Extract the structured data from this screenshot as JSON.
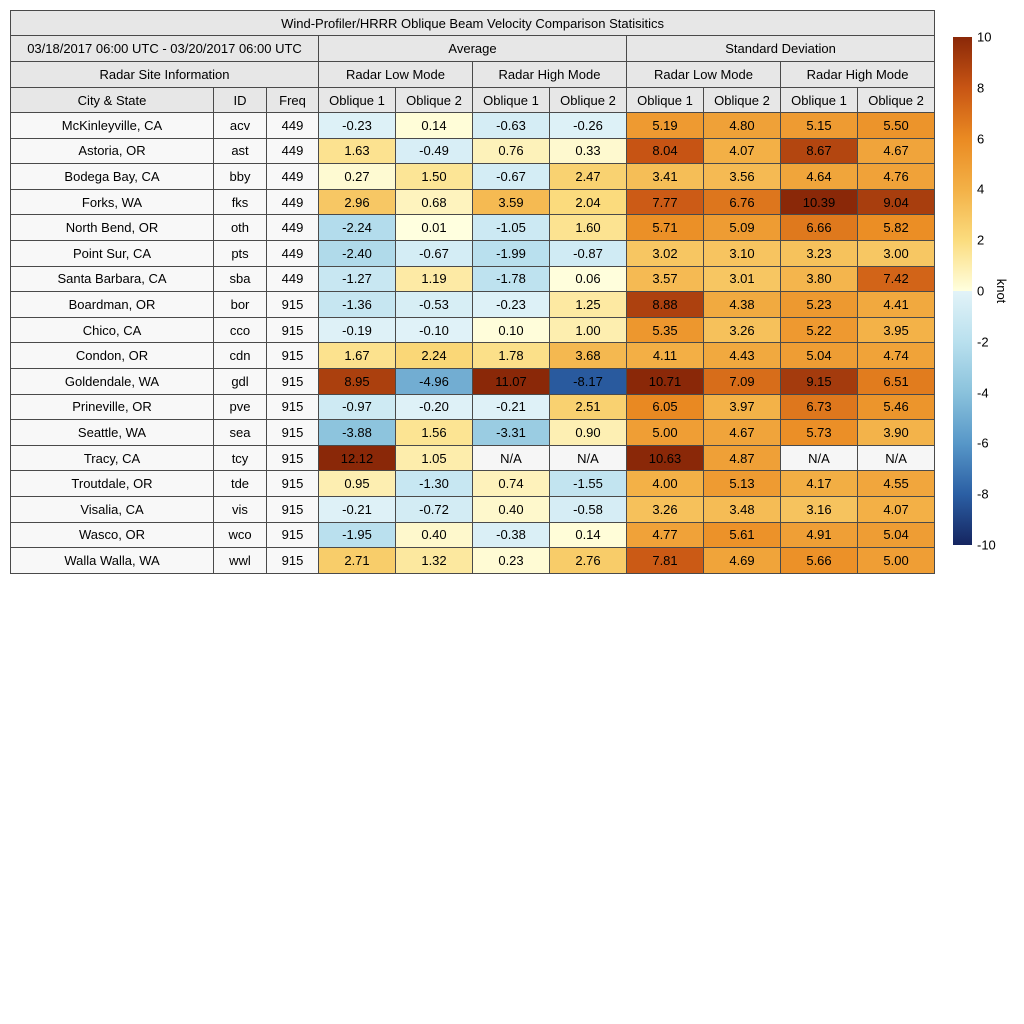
{
  "title": "Wind-Profiler/HRRR Oblique Beam Velocity Comparison Statisitics",
  "header": {
    "date_range": "03/18/2017 06:00 UTC - 03/20/2017 06:00 UTC",
    "group_average": "Average",
    "group_std": "Standard Deviation",
    "site_info": "Radar Site Information",
    "mode_labels": [
      "Radar Low Mode",
      "Radar High Mode",
      "Radar Low Mode",
      "Radar High Mode"
    ],
    "col_city": "City & State",
    "col_id": "ID",
    "col_freq": "Freq",
    "oblique_labels": [
      "Oblique 1",
      "Oblique 2",
      "Oblique 1",
      "Oblique 2",
      "Oblique 1",
      "Oblique 2",
      "Oblique 1",
      "Oblique 2"
    ]
  },
  "colormap": {
    "na_bg": "#f6f6f6",
    "stops": [
      [
        -10,
        "#152560"
      ],
      [
        -8,
        "#2b5fa4"
      ],
      [
        -6,
        "#5797c8"
      ],
      [
        -4,
        "#8ac2dc"
      ],
      [
        -2,
        "#b9e0ee"
      ],
      [
        -0.001,
        "#e2f3f8"
      ],
      [
        0,
        "#ffffdf"
      ],
      [
        2,
        "#fbdc7e"
      ],
      [
        4,
        "#f3b147"
      ],
      [
        6,
        "#ea8a22"
      ],
      [
        8,
        "#c85514"
      ],
      [
        10,
        "#8a2808"
      ]
    ]
  },
  "chart_data": {
    "type": "heatmap",
    "title": "Wind-Profiler/HRRR Oblique Beam Velocity Comparison Statisitics",
    "period": "03/18/2017 06:00 UTC - 03/20/2017 06:00 UTC",
    "value_columns": [
      "Average Radar Low Mode Oblique 1",
      "Average Radar Low Mode Oblique 2",
      "Average Radar High Mode Oblique 1",
      "Average Radar High Mode Oblique 2",
      "Standard Deviation Radar Low Mode Oblique 1",
      "Standard Deviation Radar Low Mode Oblique 2",
      "Standard Deviation Radar High Mode Oblique 1",
      "Standard Deviation Radar High Mode Oblique 2"
    ],
    "value_range": [
      -10,
      10
    ],
    "colorbar_label": "knot",
    "colorbar_ticks": [
      10,
      8,
      6,
      4,
      2,
      0,
      -2,
      -4,
      -6,
      -8,
      -10
    ],
    "rows": [
      {
        "city": "McKinleyville, CA",
        "id": "acv",
        "freq": "449",
        "values": [
          "-0.23",
          "0.14",
          "-0.63",
          "-0.26",
          "5.19",
          "4.80",
          "5.15",
          "5.50"
        ]
      },
      {
        "city": "Astoria, OR",
        "id": "ast",
        "freq": "449",
        "values": [
          "1.63",
          "-0.49",
          "0.76",
          "0.33",
          "8.04",
          "4.07",
          "8.67",
          "4.67"
        ]
      },
      {
        "city": "Bodega Bay, CA",
        "id": "bby",
        "freq": "449",
        "values": [
          "0.27",
          "1.50",
          "-0.67",
          "2.47",
          "3.41",
          "3.56",
          "4.64",
          "4.76"
        ]
      },
      {
        "city": "Forks, WA",
        "id": "fks",
        "freq": "449",
        "values": [
          "2.96",
          "0.68",
          "3.59",
          "2.04",
          "7.77",
          "6.76",
          "10.39",
          "9.04"
        ]
      },
      {
        "city": "North Bend, OR",
        "id": "oth",
        "freq": "449",
        "values": [
          "-2.24",
          "0.01",
          "-1.05",
          "1.60",
          "5.71",
          "5.09",
          "6.66",
          "5.82"
        ]
      },
      {
        "city": "Point Sur, CA",
        "id": "pts",
        "freq": "449",
        "values": [
          "-2.40",
          "-0.67",
          "-1.99",
          "-0.87",
          "3.02",
          "3.10",
          "3.23",
          "3.00"
        ]
      },
      {
        "city": "Santa Barbara, CA",
        "id": "sba",
        "freq": "449",
        "values": [
          "-1.27",
          "1.19",
          "-1.78",
          "0.06",
          "3.57",
          "3.01",
          "3.80",
          "7.42"
        ]
      },
      {
        "city": "Boardman, OR",
        "id": "bor",
        "freq": "915",
        "values": [
          "-1.36",
          "-0.53",
          "-0.23",
          "1.25",
          "8.88",
          "4.38",
          "5.23",
          "4.41"
        ]
      },
      {
        "city": "Chico, CA",
        "id": "cco",
        "freq": "915",
        "values": [
          "-0.19",
          "-0.10",
          "0.10",
          "1.00",
          "5.35",
          "3.26",
          "5.22",
          "3.95"
        ]
      },
      {
        "city": "Condon, OR",
        "id": "cdn",
        "freq": "915",
        "values": [
          "1.67",
          "2.24",
          "1.78",
          "3.68",
          "4.11",
          "4.43",
          "5.04",
          "4.74"
        ]
      },
      {
        "city": "Goldendale, WA",
        "id": "gdl",
        "freq": "915",
        "values": [
          "8.95",
          "-4.96",
          "11.07",
          "-8.17",
          "10.71",
          "7.09",
          "9.15",
          "6.51"
        ]
      },
      {
        "city": "Prineville, OR",
        "id": "pve",
        "freq": "915",
        "values": [
          "-0.97",
          "-0.20",
          "-0.21",
          "2.51",
          "6.05",
          "3.97",
          "6.73",
          "5.46"
        ]
      },
      {
        "city": "Seattle, WA",
        "id": "sea",
        "freq": "915",
        "values": [
          "-3.88",
          "1.56",
          "-3.31",
          "0.90",
          "5.00",
          "4.67",
          "5.73",
          "3.90"
        ]
      },
      {
        "city": "Tracy, CA",
        "id": "tcy",
        "freq": "915",
        "values": [
          "12.12",
          "1.05",
          "N/A",
          "N/A",
          "10.63",
          "4.87",
          "N/A",
          "N/A"
        ]
      },
      {
        "city": "Troutdale, OR",
        "id": "tde",
        "freq": "915",
        "values": [
          "0.95",
          "-1.30",
          "0.74",
          "-1.55",
          "4.00",
          "5.13",
          "4.17",
          "4.55"
        ]
      },
      {
        "city": "Visalia, CA",
        "id": "vis",
        "freq": "915",
        "values": [
          "-0.21",
          "-0.72",
          "0.40",
          "-0.58",
          "3.26",
          "3.48",
          "3.16",
          "4.07"
        ]
      },
      {
        "city": "Wasco, OR",
        "id": "wco",
        "freq": "915",
        "values": [
          "-1.95",
          "0.40",
          "-0.38",
          "0.14",
          "4.77",
          "5.61",
          "4.91",
          "5.04"
        ]
      },
      {
        "city": "Walla Walla, WA",
        "id": "wwl",
        "freq": "915",
        "values": [
          "2.71",
          "1.32",
          "0.23",
          "2.76",
          "7.81",
          "4.69",
          "5.66",
          "5.00"
        ]
      }
    ]
  }
}
